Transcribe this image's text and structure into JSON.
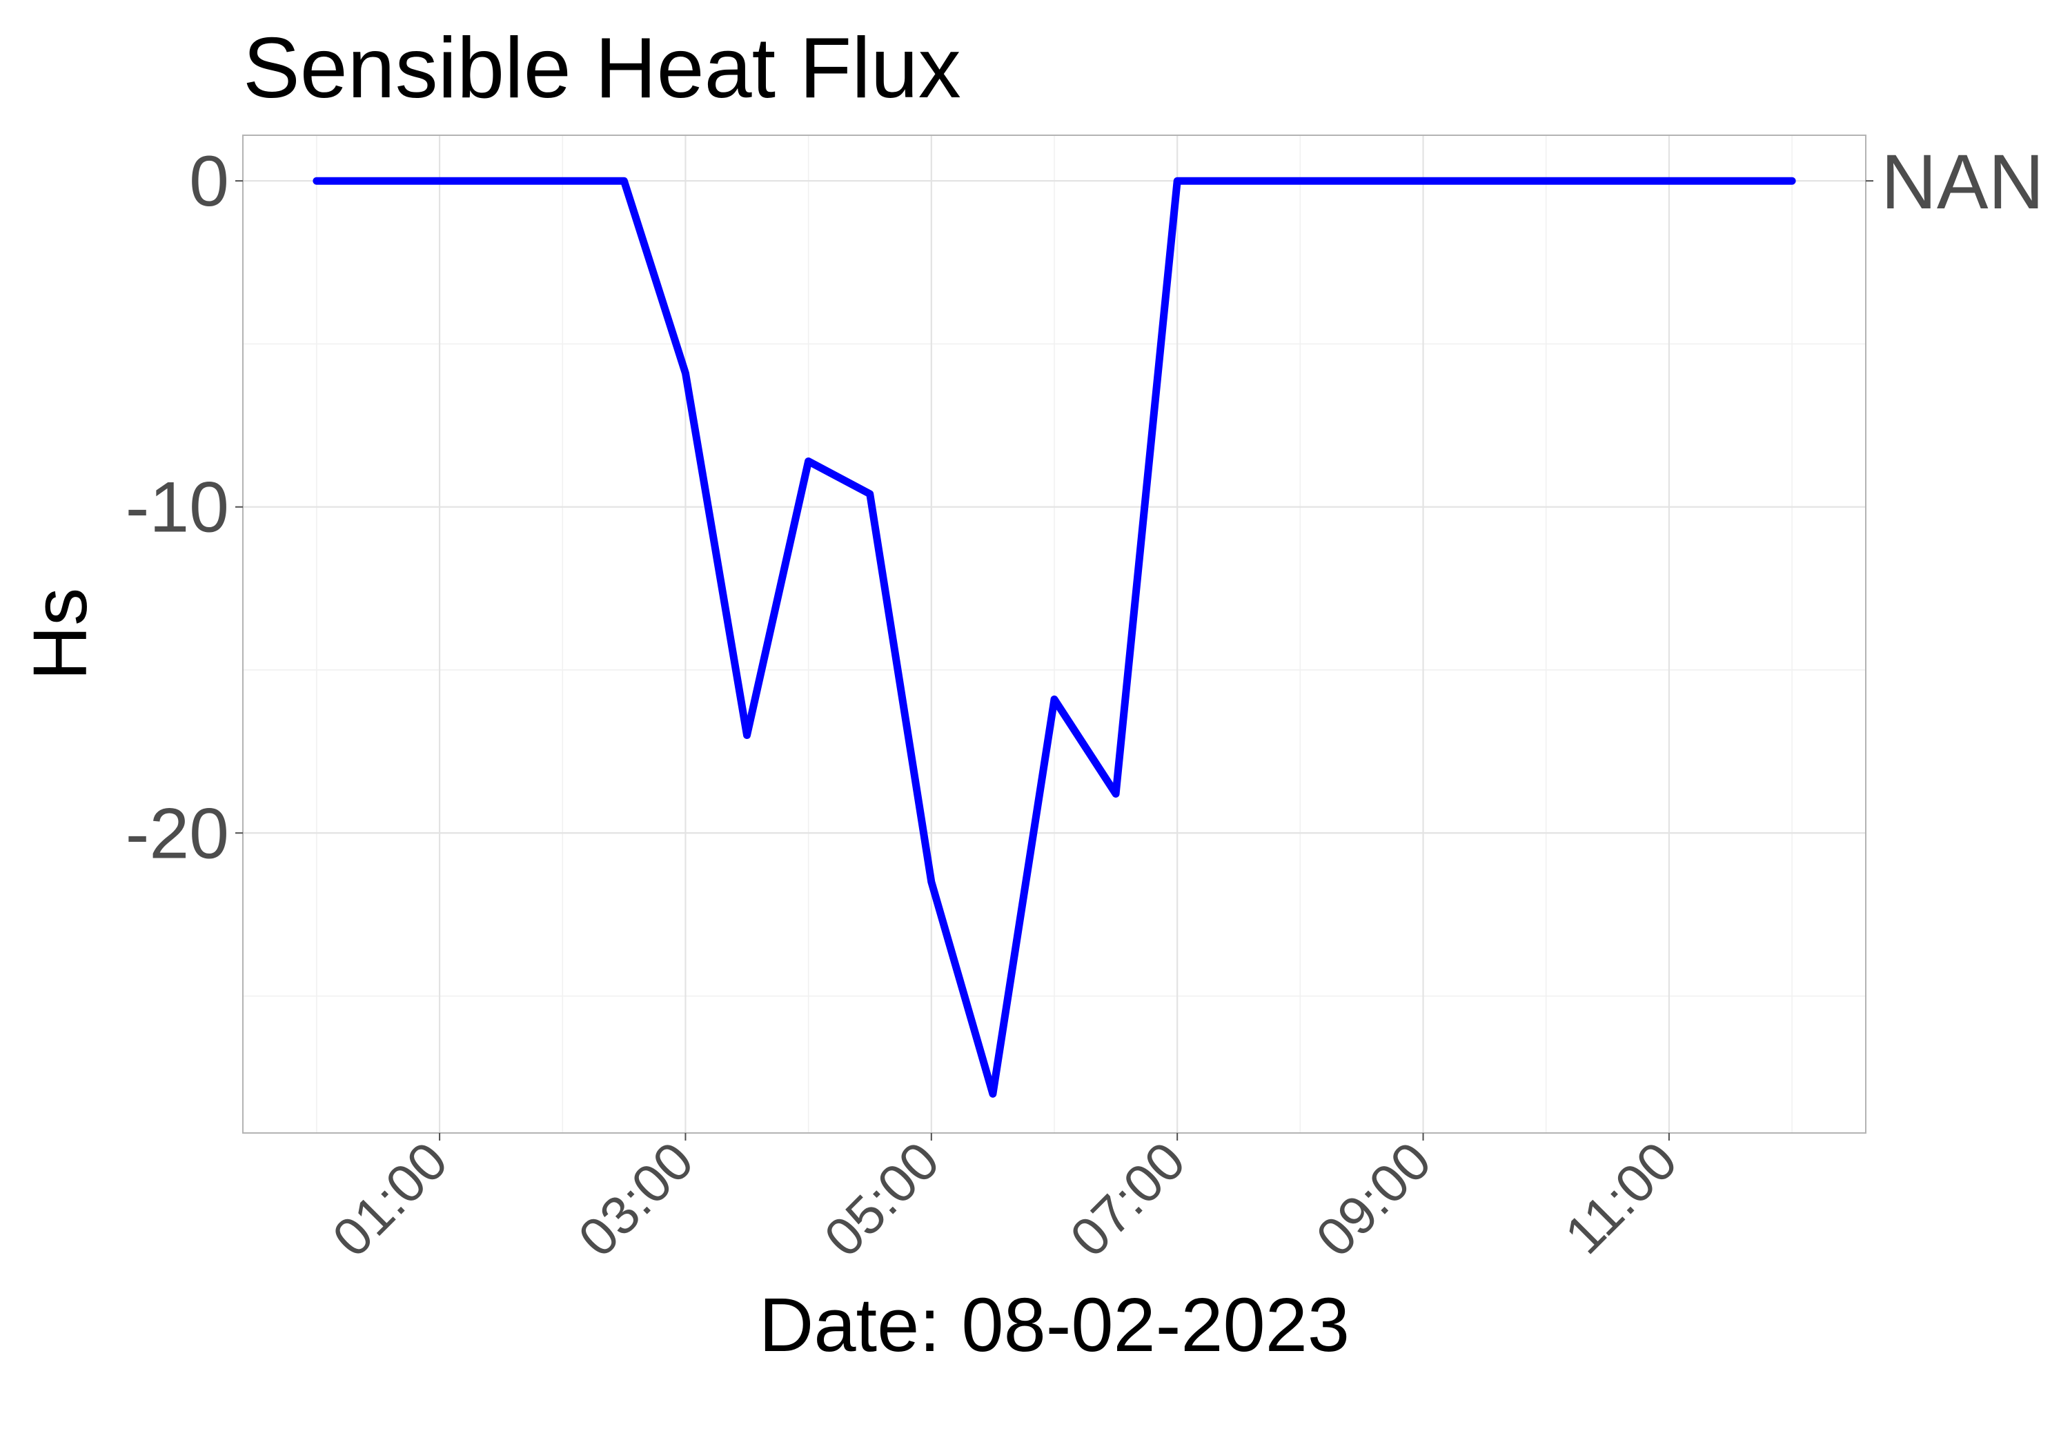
{
  "chart_data": {
    "type": "line",
    "title": "Sensible Heat Flux",
    "xlabel": "Date: 08-02-2023",
    "ylabel": "Hs",
    "secondary_axis_label": "NAN",
    "x_tick_labels": [
      "01:00",
      "03:00",
      "05:00",
      "07:00",
      "09:00",
      "11:00"
    ],
    "y_tick_labels": [
      "0",
      "-10",
      "-20"
    ],
    "y_ticks": [
      0,
      -10,
      -20
    ],
    "ylim": [
      -29.2,
      1.4
    ],
    "xlim": [
      "00:00",
      "12:00"
    ],
    "grid": true,
    "colors": {
      "line": "#0000ff"
    },
    "series": [
      {
        "x": [
          "00:00",
          "00:30",
          "01:00",
          "01:30",
          "02:00",
          "02:30",
          "03:00",
          "03:30",
          "04:00",
          "04:30",
          "05:00",
          "05:30",
          "06:00",
          "06:30",
          "07:00",
          "07:30",
          "08:00",
          "08:30",
          "09:00",
          "09:30",
          "10:00",
          "10:30",
          "11:00",
          "11:30",
          "12:00"
        ],
        "values": [
          0,
          0,
          0,
          0,
          0,
          0,
          -5.9,
          -17.0,
          -8.6,
          -9.6,
          -21.5,
          -28.0,
          -15.9,
          -18.8,
          0,
          0,
          0,
          0,
          0,
          0,
          0,
          0,
          0,
          0,
          0
        ]
      }
    ]
  }
}
